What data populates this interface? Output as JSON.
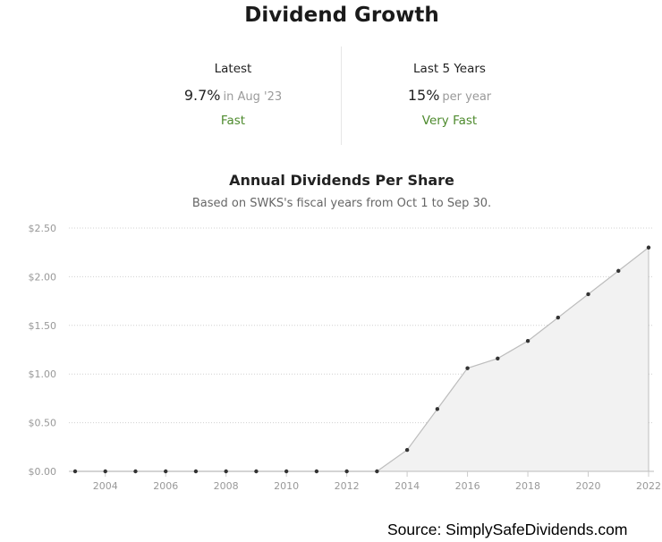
{
  "page": {
    "title": "Dividend Growth",
    "source": "Source: SimplySafeDividends.com"
  },
  "stats": {
    "latest": {
      "label": "Latest",
      "value": "9.7%",
      "sub": "in Aug '23",
      "rating": "Fast"
    },
    "last5": {
      "label": "Last 5 Years",
      "value": "15%",
      "sub": "per year",
      "rating": "Very Fast"
    }
  },
  "colors": {
    "rating": "#4d8a2d",
    "line": "#bdbdbd",
    "area": "#f2f2f2",
    "point": "#333333",
    "grid": "#d0d0d0"
  },
  "chart_data": {
    "type": "area",
    "title": "Annual Dividends Per Share",
    "subtitle": "Based on SWKS's fiscal years from Oct 1 to Sep 30.",
    "x": [
      2003,
      2004,
      2005,
      2006,
      2007,
      2008,
      2009,
      2010,
      2011,
      2012,
      2013,
      2014,
      2015,
      2016,
      2017,
      2018,
      2019,
      2020,
      2021,
      2022
    ],
    "values": [
      0,
      0,
      0,
      0,
      0,
      0,
      0,
      0,
      0,
      0,
      0,
      0.22,
      0.64,
      1.06,
      1.16,
      1.34,
      1.58,
      1.82,
      2.06,
      2.3
    ],
    "xticks": [
      "2004",
      "2006",
      "2008",
      "2010",
      "2012",
      "2014",
      "2016",
      "2018",
      "2020",
      "2022"
    ],
    "yticks": [
      "$0.00",
      "$0.50",
      "$1.00",
      "$1.50",
      "$2.00",
      "$2.50"
    ],
    "ylim": [
      0,
      2.5
    ],
    "xlim": [
      2003,
      2022
    ],
    "grid": "horizontal dotted",
    "legend": "none"
  }
}
